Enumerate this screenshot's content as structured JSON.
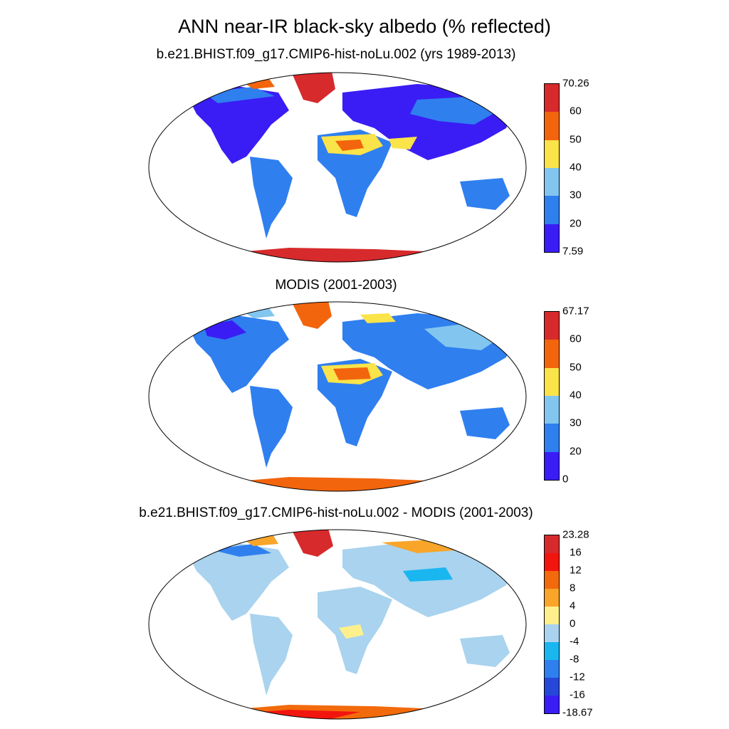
{
  "title": "ANN near-IR black-sky albedo (% reflected)",
  "panels": [
    {
      "title": "b.e21.BHIST.f09_g17.CMIP6-hist-noLu.002 (yrs 1989-2013)",
      "colorbar": {
        "colors": [
          "#3a1df5",
          "#2f7fef",
          "#82c6ef",
          "#fbe34a",
          "#f2650d",
          "#d72a2c"
        ],
        "labels": [
          "7.59",
          "20",
          "30",
          "40",
          "50",
          "60",
          "70.26"
        ]
      }
    },
    {
      "title": "MODIS (2001-2003)",
      "colorbar": {
        "colors": [
          "#3a1df5",
          "#2f7fef",
          "#82c6ef",
          "#fbe34a",
          "#f2650d",
          "#d72a2c"
        ],
        "labels": [
          "0",
          "20",
          "30",
          "40",
          "50",
          "60",
          "67.17"
        ]
      }
    },
    {
      "title": "b.e21.BHIST.f09_g17.CMIP6-hist-noLu.002 - MODIS (2001-2003)",
      "colorbar": {
        "colors": [
          "#3a1df5",
          "#2647d8",
          "#2f7fef",
          "#19b6f0",
          "#a9d3ee",
          "#fdf08c",
          "#f8a52a",
          "#f26a0c",
          "#f2150e",
          "#d72a2c"
        ],
        "labels": [
          "-18.67",
          "-16",
          "-12",
          "-8",
          "-4",
          "0",
          "4",
          "8",
          "12",
          "16",
          "23.28"
        ]
      }
    }
  ]
}
